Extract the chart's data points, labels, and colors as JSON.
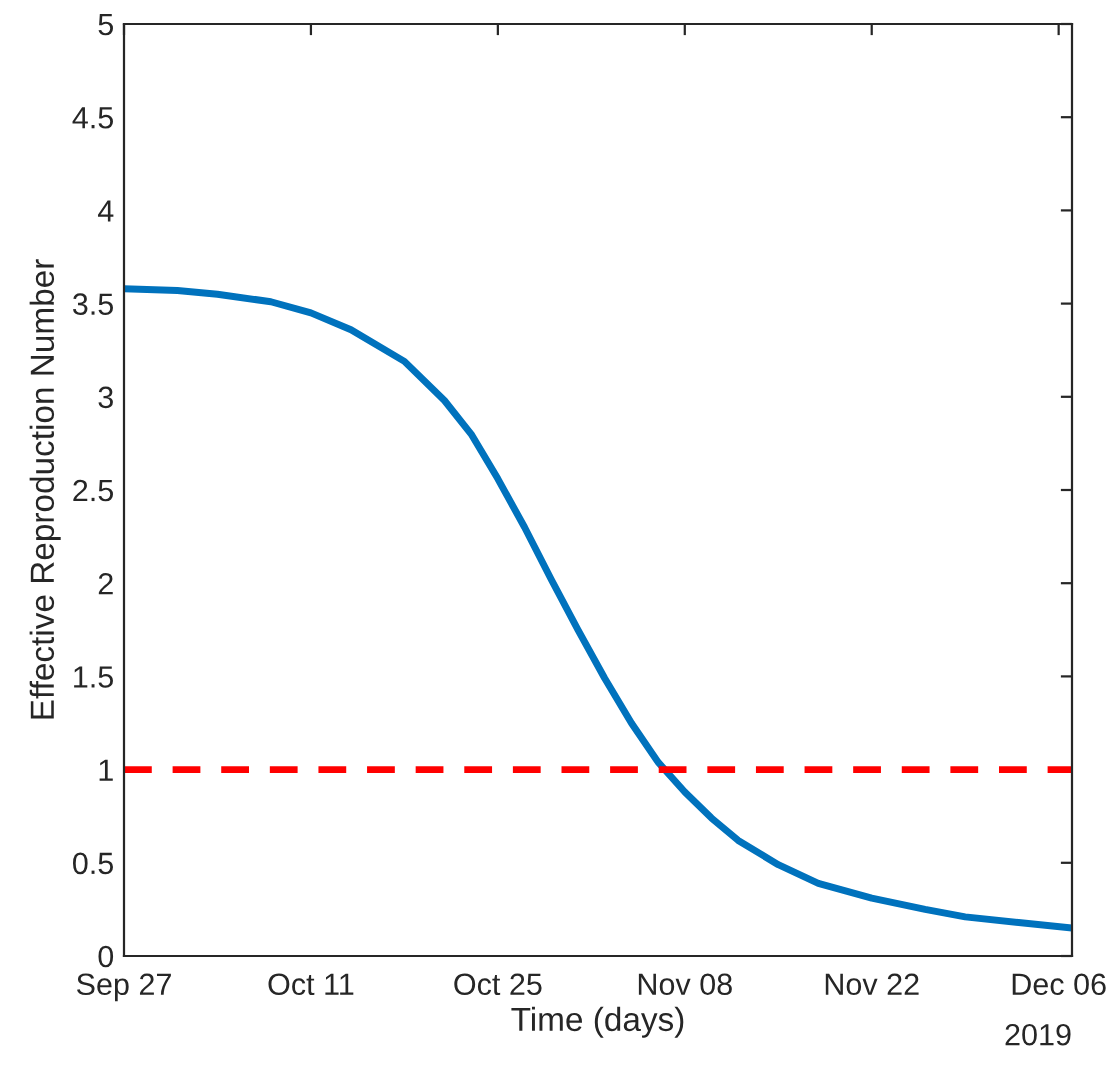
{
  "chart_data": {
    "type": "line",
    "xlabel": "Time (days)",
    "ylabel": "Effective Reproduction Number",
    "x": [
      "2019-09-27",
      "2019-10-01",
      "2019-10-04",
      "2019-10-08",
      "2019-10-11",
      "2019-10-14",
      "2019-10-18",
      "2019-10-21",
      "2019-10-23",
      "2019-10-25",
      "2019-10-27",
      "2019-10-29",
      "2019-10-31",
      "2019-11-02",
      "2019-11-04",
      "2019-11-06",
      "2019-11-08",
      "2019-11-10",
      "2019-11-12",
      "2019-11-15",
      "2019-11-18",
      "2019-11-22",
      "2019-11-26",
      "2019-11-29",
      "2019-12-03",
      "2019-12-07"
    ],
    "series": [
      {
        "color": "#0072bd",
        "values": [
          3.58,
          3.57,
          3.55,
          3.51,
          3.45,
          3.36,
          3.19,
          2.98,
          2.8,
          2.56,
          2.3,
          2.02,
          1.75,
          1.49,
          1.25,
          1.04,
          0.88,
          0.74,
          0.62,
          0.49,
          0.39,
          0.31,
          0.25,
          0.21,
          0.18,
          0.15
        ]
      }
    ],
    "xlim": [
      "2019-09-27",
      "2019-12-07"
    ],
    "xticks": [
      {
        "value": "2019-09-27",
        "label": "Sep 27"
      },
      {
        "value": "2019-10-11",
        "label": "Oct 11"
      },
      {
        "value": "2019-10-25",
        "label": "Oct 25"
      },
      {
        "value": "2019-11-08",
        "label": "Nov 08"
      },
      {
        "value": "2019-11-22",
        "label": "Nov 22"
      },
      {
        "value": "2019-12-06",
        "label": "Dec 06"
      }
    ],
    "ylim": [
      0,
      5
    ],
    "yticks": [
      0,
      0.5,
      1,
      1.5,
      2,
      2.5,
      3,
      3.5,
      4,
      4.5,
      5
    ],
    "ref_lines": [
      {
        "axis": "y",
        "value": 1,
        "color": "#ff0000",
        "line_style": "dashed"
      }
    ],
    "annotations": [
      "2019"
    ],
    "grid": false,
    "legend": false,
    "marker": "none",
    "line_style": "solid"
  }
}
